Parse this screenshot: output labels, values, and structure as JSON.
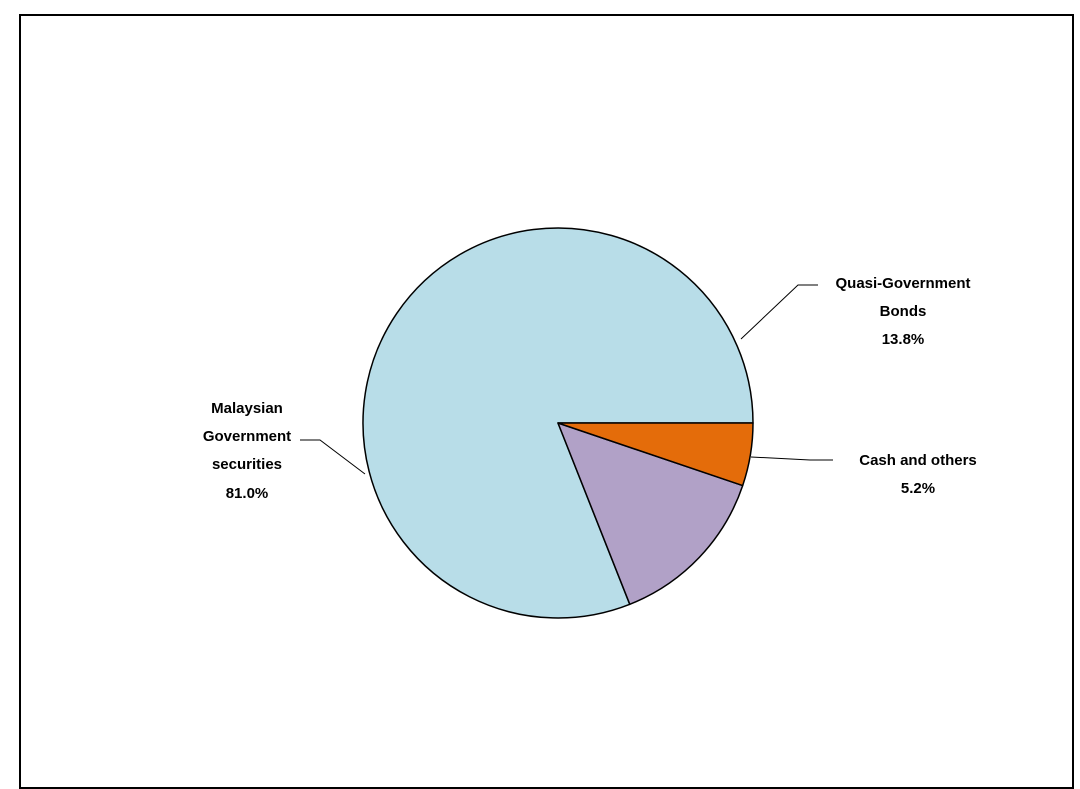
{
  "chart_data": {
    "type": "pie",
    "slices": [
      {
        "label_lines": [
          "Malaysian",
          "Government",
          "securities"
        ],
        "value_text": "81.0%",
        "value": 81.0,
        "color": "#b8dde8"
      },
      {
        "label_lines": [
          "Quasi-Government",
          "Bonds"
        ],
        "value_text": "13.8%",
        "value": 13.8,
        "color": "#b1a1c7"
      },
      {
        "label_lines": [
          "Cash and others"
        ],
        "value_text": "5.2%",
        "value": 5.2,
        "color": "#e46c0a"
      }
    ],
    "start_angle_deg": 0,
    "direction": "counterclockwise",
    "legend": "none"
  }
}
